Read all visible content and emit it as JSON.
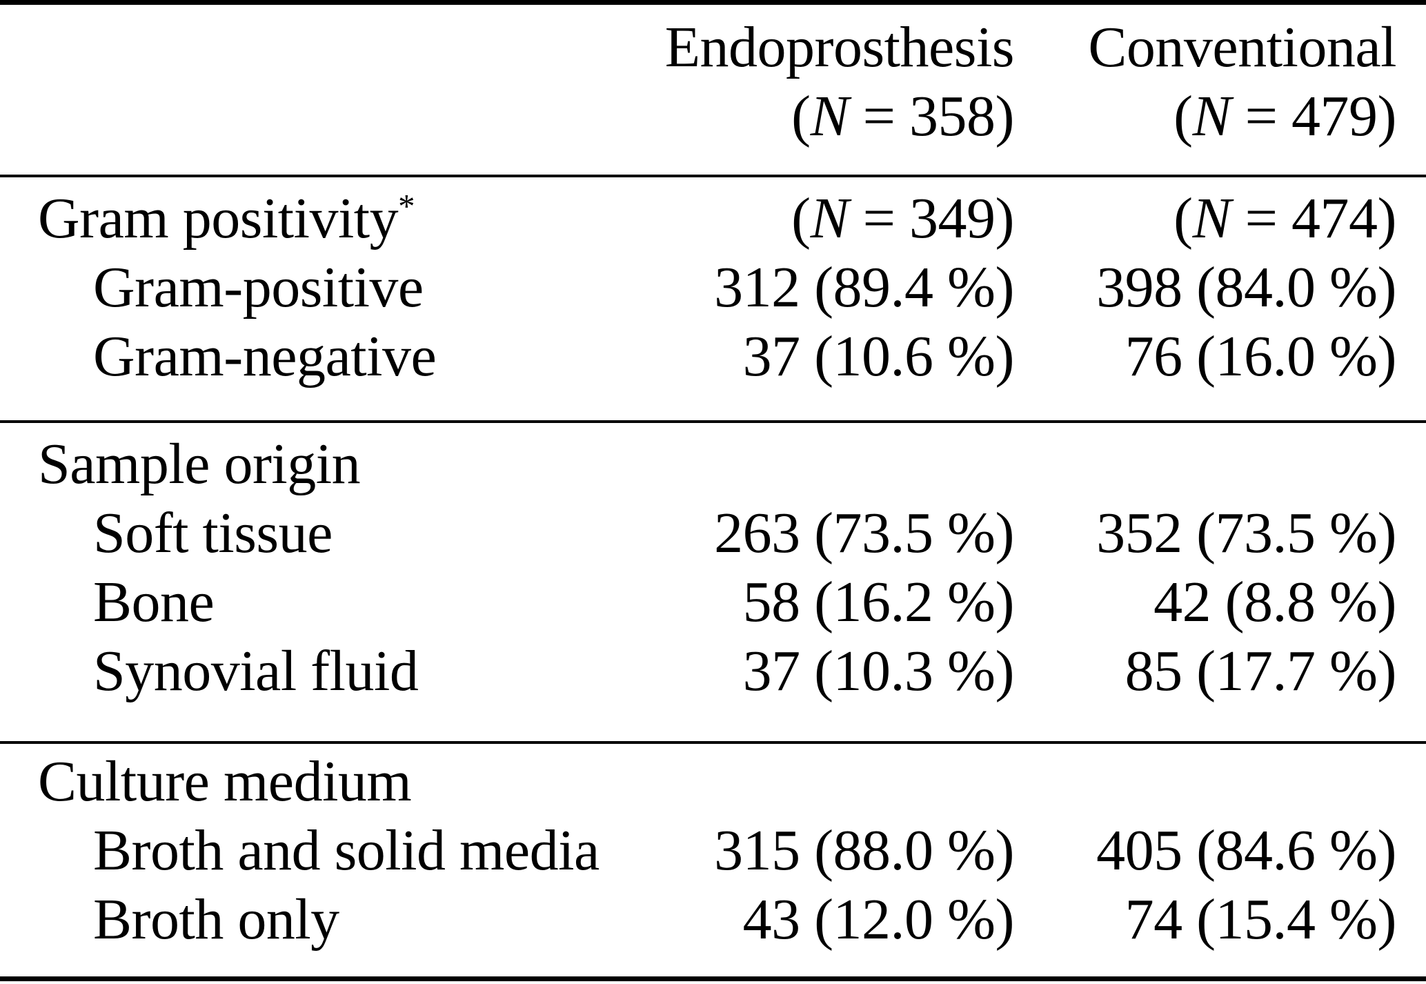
{
  "page": {
    "background": "#ffffff",
    "text_color": "#000000",
    "rule_color": "#000000"
  },
  "table": {
    "header": {
      "columns": [
        {
          "title": "Endoprosthesis",
          "n_open": "(",
          "n_var": "N",
          "n_rest": " = 358)"
        },
        {
          "title": "Conventional",
          "n_open": "(",
          "n_var": "N",
          "n_rest": " = 479)"
        }
      ]
    },
    "sections": [
      {
        "title": {
          "label": "Gram positivity",
          "footnote_marker": "*"
        },
        "counts": {
          "endoprosthesis": {
            "n_open": "(",
            "n_var": "N",
            "n_rest": " = 349)"
          },
          "conventional": {
            "n_open": "(",
            "n_var": "N",
            "n_rest": " = 474)"
          }
        },
        "rows": [
          {
            "label": "Gram-positive",
            "endoprosthesis": "312 (89.4 %)",
            "conventional": "398 (84.0 %)"
          },
          {
            "label": "Gram-negative",
            "endoprosthesis": "37 (10.6 %)",
            "conventional": "76 (16.0 %)"
          }
        ]
      },
      {
        "title": {
          "label": "Sample origin"
        },
        "rows": [
          {
            "label": "Soft tissue",
            "endoprosthesis": "263 (73.5 %)",
            "conventional": "352 (73.5 %)"
          },
          {
            "label": "Bone",
            "endoprosthesis": "58 (16.2 %)",
            "conventional": "42 (8.8 %)"
          },
          {
            "label": "Synovial fluid",
            "endoprosthesis": "37 (10.3 %)",
            "conventional": "85 (17.7 %)"
          }
        ]
      },
      {
        "title": {
          "label": "Culture medium"
        },
        "rows": [
          {
            "label": "Broth and solid media",
            "endoprosthesis": "315 (88.0 %)",
            "conventional": "405 (84.6 %)"
          },
          {
            "label": "Broth only",
            "endoprosthesis": "43 (12.0 %)",
            "conventional": "74 (15.4 %)"
          }
        ]
      }
    ]
  }
}
